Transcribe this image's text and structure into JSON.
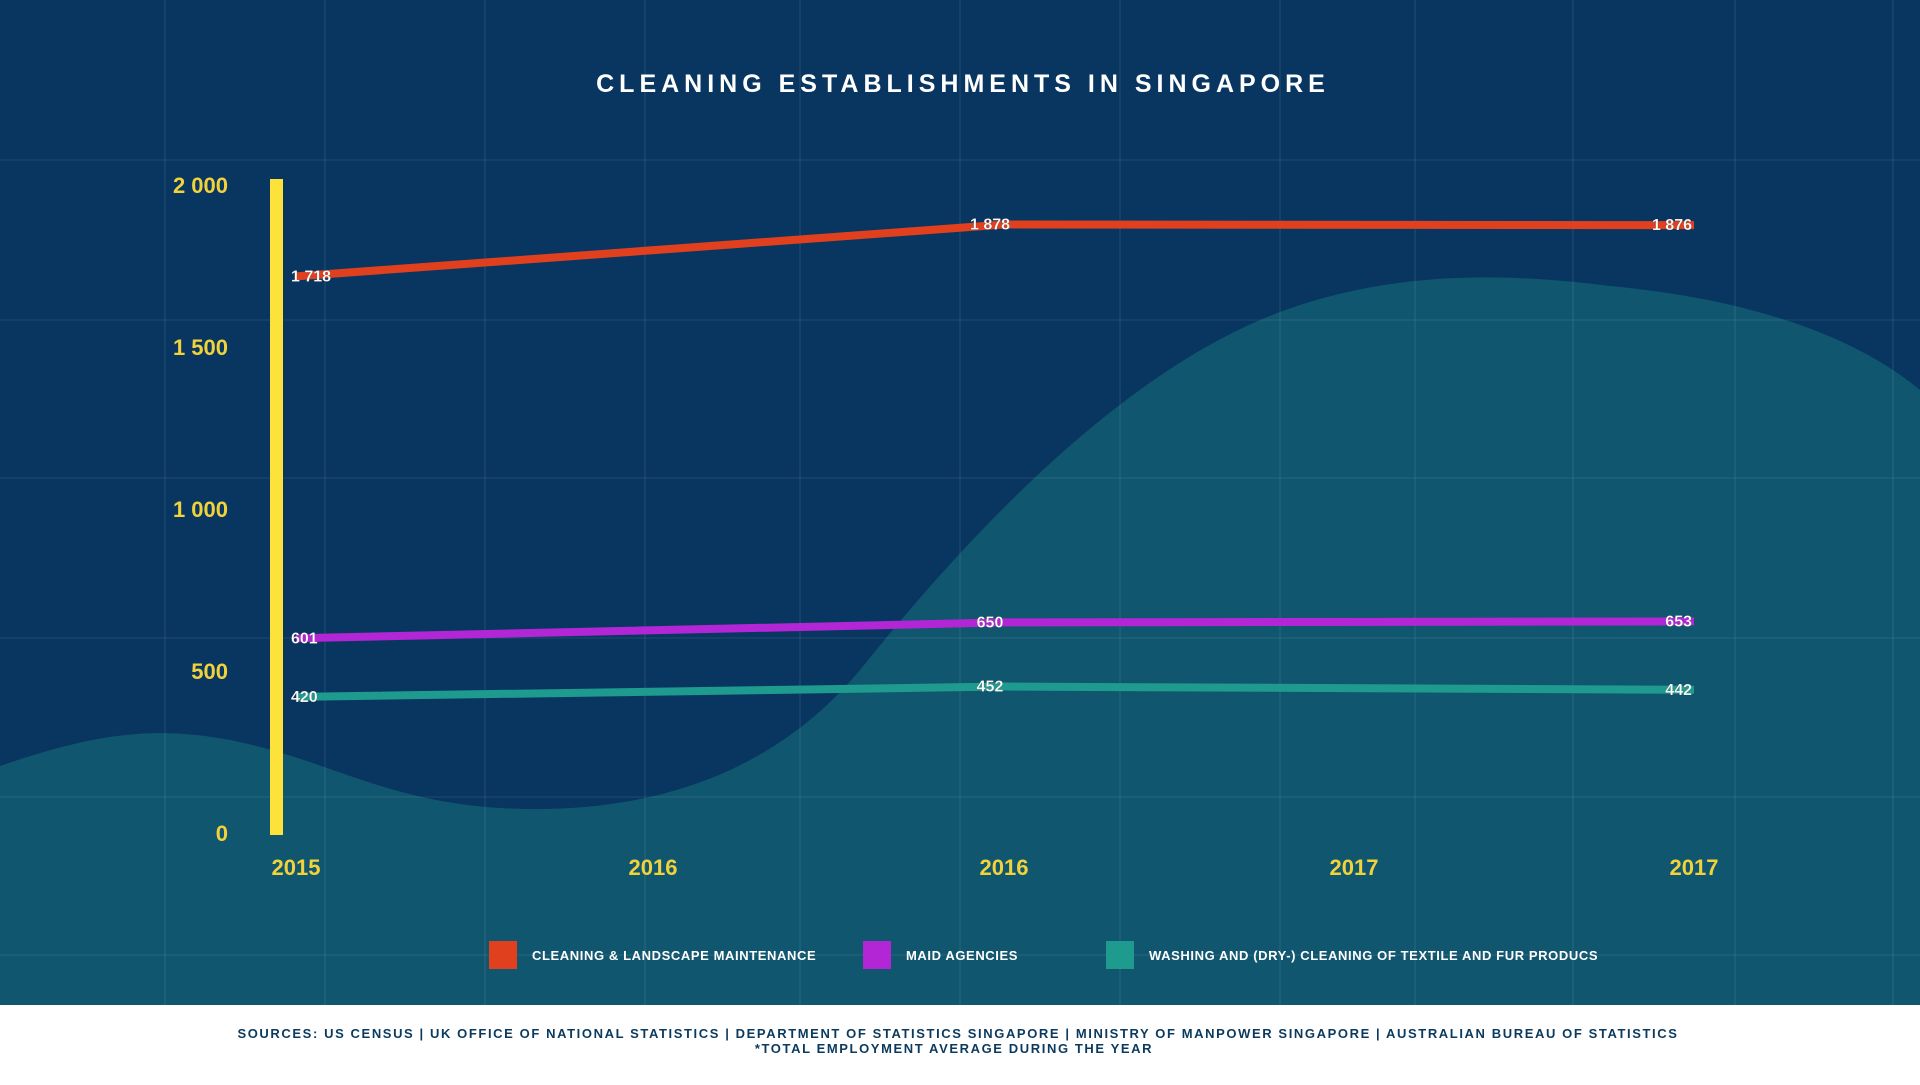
{
  "chart_data": {
    "type": "line",
    "title": "CLEANING ESTABLISHMENTS IN SINGAPORE",
    "categories": [
      "2015",
      "2016",
      "2016",
      "2017",
      "2017"
    ],
    "yticks": [
      {
        "value": 0,
        "label": "0"
      },
      {
        "value": 500,
        "label": "500"
      },
      {
        "value": 1000,
        "label": "1 000"
      },
      {
        "value": 1500,
        "label": "1 500"
      },
      {
        "value": 2000,
        "label": "2 000"
      }
    ],
    "ylim": [
      0,
      2000
    ],
    "grid": true,
    "legend_position": "bottom",
    "series": [
      {
        "name": "CLEANING & LANDSCAPE MAINTENANCE",
        "color": "#e0401e",
        "points": [
          {
            "x_index": 0,
            "value": 1718,
            "label": "1 718"
          },
          {
            "x_index": 2,
            "value": 1878,
            "label": "1 878"
          },
          {
            "x_index": 4,
            "value": 1876,
            "label": "1 876"
          }
        ]
      },
      {
        "name": "MAID AGENCIES",
        "color": "#b326d6",
        "points": [
          {
            "x_index": 0,
            "value": 601,
            "label": "601"
          },
          {
            "x_index": 2,
            "value": 650,
            "label": "650"
          },
          {
            "x_index": 4,
            "value": 653,
            "label": "653"
          }
        ]
      },
      {
        "name": "WASHING AND (DRY-) CLEANING OF TEXTILE AND FUR PRODUCS",
        "color": "#1e9b8e",
        "points": [
          {
            "x_index": 0,
            "value": 420,
            "label": "420"
          },
          {
            "x_index": 2,
            "value": 452,
            "label": "452"
          },
          {
            "x_index": 4,
            "value": 442,
            "label": "442"
          }
        ]
      }
    ]
  },
  "footer": {
    "sources": "SOURCES: US CENSUS | UK OFFICE OF NATIONAL STATISTICS | DEPARTMENT OF STATISTICS SINGAPORE | MINISTRY OF MANPOWER SINGAPORE | AUSTRALIAN BUREAU OF STATISTICS",
    "note": "*TOTAL EMPLOYMENT AVERAGE DURING THE YEAR"
  },
  "colors": {
    "background": "#083660",
    "wave": "#10566f",
    "axis": "#fde23c",
    "tick_label": "#f2d23b",
    "footer_text": "#0b3a5e"
  }
}
